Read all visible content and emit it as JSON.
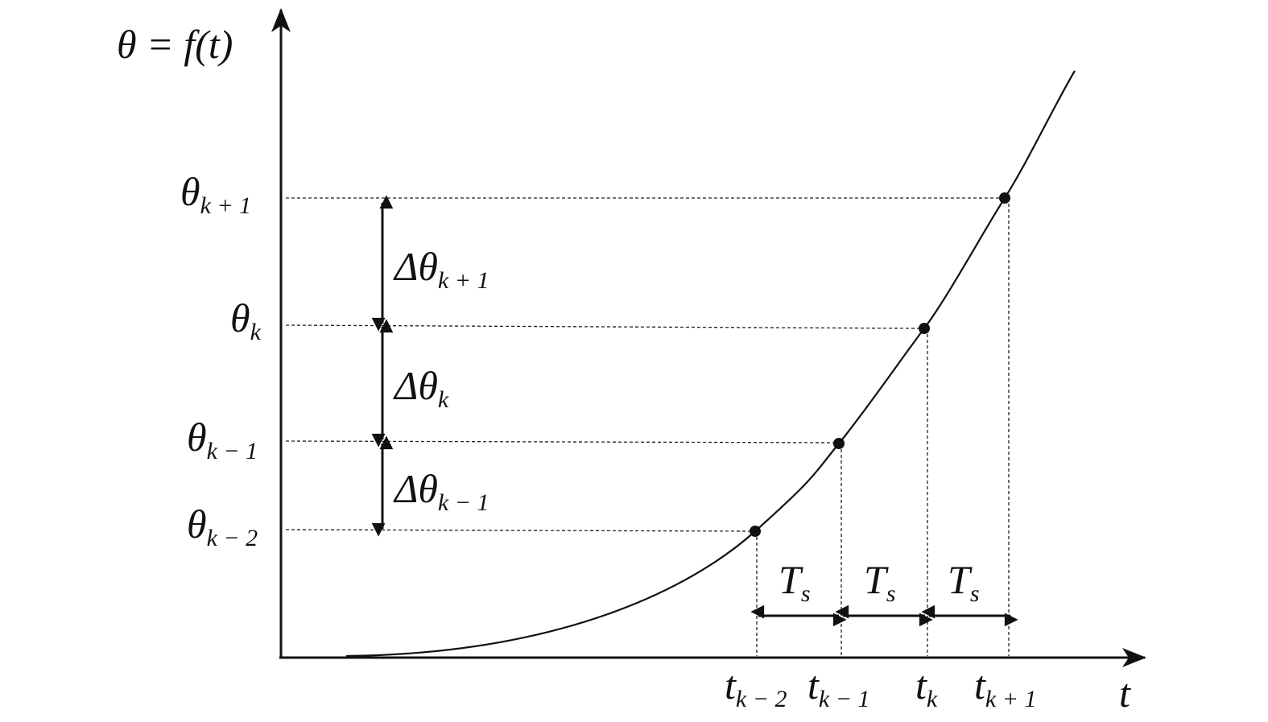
{
  "axes": {
    "y_label": "θ = f(t)",
    "x_label": "t"
  },
  "theta_labels": [
    {
      "base": "θ",
      "sub": "k + 1"
    },
    {
      "base": "θ",
      "sub": "k"
    },
    {
      "base": "θ",
      "sub": "k − 1"
    },
    {
      "base": "θ",
      "sub": "k − 2"
    }
  ],
  "delta_labels": [
    {
      "base": "Δθ",
      "sub": "k + 1"
    },
    {
      "base": "Δθ",
      "sub": "k"
    },
    {
      "base": "Δθ",
      "sub": "k − 1"
    }
  ],
  "time_labels": [
    {
      "base": "t",
      "sub": "k − 2"
    },
    {
      "base": "t",
      "sub": "k − 1"
    },
    {
      "base": "t",
      "sub": "k"
    },
    {
      "base": "t",
      "sub": "k + 1"
    }
  ],
  "interval_labels": [
    {
      "base": "T",
      "sub": "s"
    },
    {
      "base": "T",
      "sub": "s"
    },
    {
      "base": "T",
      "sub": "s"
    }
  ]
}
